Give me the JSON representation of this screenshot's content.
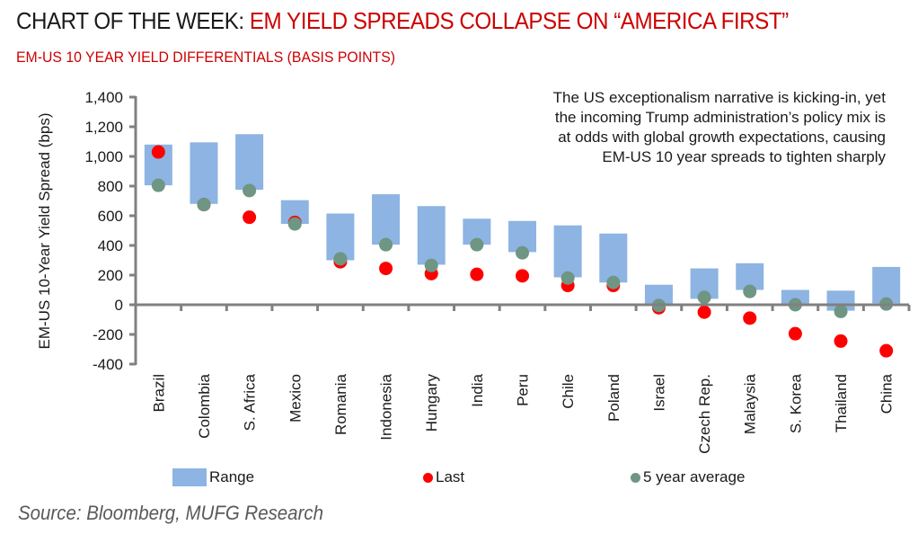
{
  "header": {
    "title_prefix": "CHART OF THE WEEK: ",
    "title_highlight": "EM YIELD SPREADS COLLAPSE ON “AMERICA FIRST”",
    "subtitle": "EM-US 10 YEAR YIELD DIFFERENTIALS (BASIS POINTS)"
  },
  "annotation": {
    "lines": [
      "The US exceptionalism narrative is kicking-in, yet",
      "the incoming Trump administration’s policy mix is",
      "at odds with global growth expectations, causing",
      "EM-US 10 year spreads to tighten sharply"
    ]
  },
  "legend": {
    "range_label": "Range",
    "last_label": "Last",
    "avg_label": "5 year average"
  },
  "source": "Source: Bloomberg, MUFG Research",
  "colors": {
    "range": "#8db4e2",
    "last": "#ff0000",
    "avg": "#6f9583",
    "axis": "#808080",
    "title_red": "#cc0000"
  },
  "chart_data": {
    "type": "range-dot",
    "title": "EM-US 10 YEAR YIELD DIFFERENTIALS (BASIS POINTS)",
    "xlabel": "",
    "ylabel": "EM-US 10-Year Yield Spread (bps)",
    "ylim": [
      -400,
      1400
    ],
    "yticks": [
      1400,
      1200,
      1000,
      800,
      600,
      400,
      200,
      0,
      -200,
      -400
    ],
    "ytick_labels": [
      "1,400",
      "1,200",
      "1,000",
      "800",
      "600",
      "400",
      "200",
      "0",
      "-200",
      "-400"
    ],
    "grid": false,
    "legend_position": "bottom",
    "categories": [
      "Brazil",
      "Colombia",
      "S. Africa",
      "Mexico",
      "Romania",
      "Indonesia",
      "Hungary",
      "India",
      "Peru",
      "Chile",
      "Poland",
      "Israel",
      "Czech Rep.",
      "Malaysia",
      "S. Korea",
      "Thailand",
      "China"
    ],
    "series": [
      {
        "name": "Range (low)",
        "values": [
          805,
          680,
          775,
          545,
          300,
          405,
          270,
          405,
          355,
          185,
          150,
          0,
          40,
          100,
          0,
          -40,
          10
        ]
      },
      {
        "name": "Range (high)",
        "values": [
          1080,
          1095,
          1150,
          705,
          615,
          745,
          665,
          580,
          565,
          535,
          480,
          135,
          245,
          280,
          100,
          95,
          255
        ]
      },
      {
        "name": "Last",
        "values": [
          1030,
          675,
          590,
          555,
          290,
          245,
          210,
          205,
          195,
          130,
          130,
          -20,
          -50,
          -90,
          -195,
          -245,
          -310
        ]
      },
      {
        "name": "5 year average",
        "values": [
          805,
          675,
          770,
          545,
          310,
          405,
          265,
          405,
          350,
          180,
          150,
          -5,
          50,
          90,
          0,
          -45,
          5
        ]
      }
    ]
  }
}
